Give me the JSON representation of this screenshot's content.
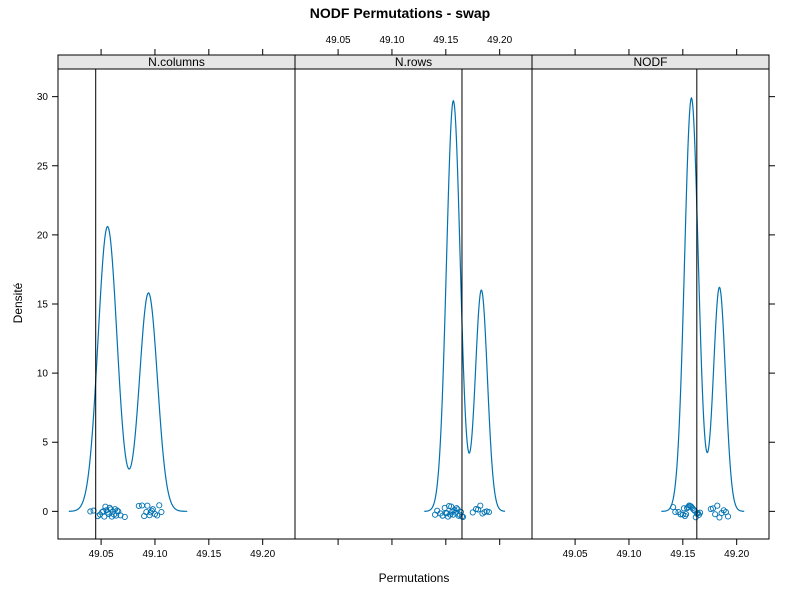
{
  "chart_data": {
    "type": "density",
    "title": "NODF Permutations - swap",
    "xlabel": "Permutations",
    "ylabel": "Densité",
    "xlim": [
      49.01,
      49.23
    ],
    "ylim": [
      -2,
      32
    ],
    "x_ticks": [
      49.05,
      49.1,
      49.15,
      49.2
    ],
    "x_tick_labels": [
      "49.05",
      "49.10",
      "49.15",
      "49.20"
    ],
    "y_ticks": [
      0,
      5,
      10,
      15,
      20,
      25,
      30
    ],
    "y_tick_labels": [
      "0",
      "5",
      "10",
      "15",
      "20",
      "25",
      "30"
    ],
    "line_color": "#0072b2",
    "reference_color": "#000000",
    "strip_color": "#e6e6e6",
    "panels": [
      {
        "name": "N.columns",
        "observed": 49.045,
        "density_components": [
          {
            "mean": 49.056,
            "sd": 0.0088,
            "peak": 20.6
          },
          {
            "mean": 49.094,
            "sd": 0.0083,
            "peak": 15.8
          }
        ],
        "density_range": [
          49.02,
          49.13
        ],
        "points": [
          49.04,
          49.043,
          49.047,
          49.049,
          49.051,
          49.052,
          49.053,
          49.054,
          49.055,
          49.056,
          49.057,
          49.058,
          49.059,
          49.06,
          49.061,
          49.062,
          49.063,
          49.064,
          49.065,
          49.066,
          49.068,
          49.072,
          49.085,
          49.088,
          49.09,
          49.092,
          49.093,
          49.095,
          49.096,
          49.097,
          49.098,
          49.1,
          49.102,
          49.104,
          49.106
        ]
      },
      {
        "name": "N.rows",
        "observed": 49.165,
        "density_components": [
          {
            "mean": 49.157,
            "sd": 0.0064,
            "peak": 29.7
          },
          {
            "mean": 49.183,
            "sd": 0.0056,
            "peak": 16.0
          }
        ],
        "density_range": [
          49.13,
          49.205
        ],
        "points": [
          49.14,
          49.142,
          49.145,
          49.147,
          49.149,
          49.15,
          49.151,
          49.152,
          49.153,
          49.154,
          49.155,
          49.156,
          49.157,
          49.158,
          49.159,
          49.16,
          49.161,
          49.162,
          49.163,
          49.164,
          49.165,
          49.166,
          49.175,
          49.178,
          49.18,
          49.182,
          49.184,
          49.186,
          49.188,
          49.19
        ]
      },
      {
        "name": "NODF",
        "observed": 49.163,
        "density_components": [
          {
            "mean": 49.158,
            "sd": 0.0064,
            "peak": 29.9
          },
          {
            "mean": 49.184,
            "sd": 0.0056,
            "peak": 16.2
          }
        ],
        "density_range": [
          49.13,
          49.207
        ],
        "points": [
          49.141,
          49.143,
          49.146,
          49.148,
          49.15,
          49.151,
          49.152,
          49.153,
          49.154,
          49.155,
          49.156,
          49.157,
          49.158,
          49.159,
          49.16,
          49.161,
          49.162,
          49.163,
          49.164,
          49.165,
          49.166,
          49.176,
          49.178,
          49.18,
          49.182,
          49.184,
          49.186,
          49.188,
          49.19,
          49.192
        ]
      }
    ]
  }
}
